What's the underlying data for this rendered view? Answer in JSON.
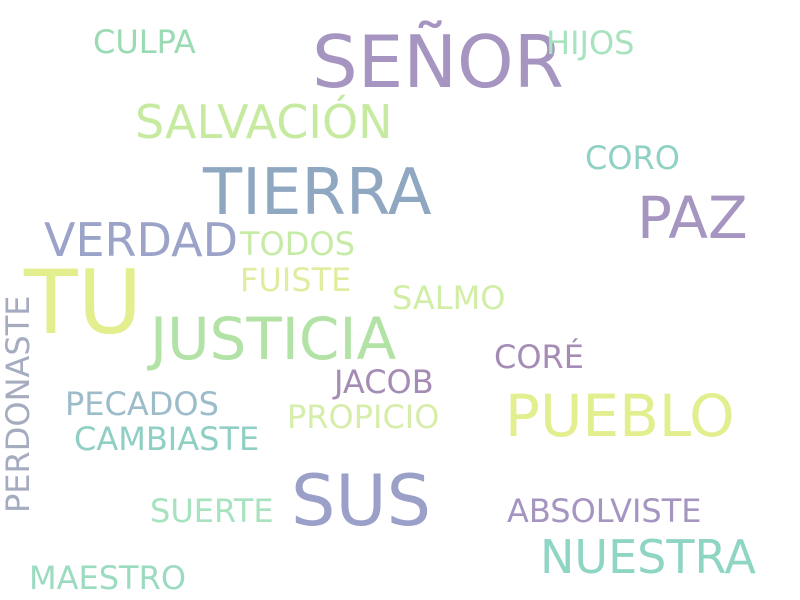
{
  "words": [
    {
      "text": "SEÑOR",
      "color": "#a595c0"
    },
    {
      "text": "TIERRA",
      "color": "#8fa7c0"
    },
    {
      "text": "TU",
      "color": "#e3ee8f"
    },
    {
      "text": "JUSTICIA",
      "color": "#b2e2a6"
    },
    {
      "text": "PUEBLO",
      "color": "#e3ee8f"
    },
    {
      "text": "SUS",
      "color": "#9ba0c8"
    },
    {
      "text": "PAZ",
      "color": "#a595c0"
    },
    {
      "text": "SALVACIÓN",
      "color": "#c6eba0"
    },
    {
      "text": "VERDAD",
      "color": "#9ba3c8"
    },
    {
      "text": "NUESTRA",
      "color": "#8fd5c4"
    },
    {
      "text": "CULPA",
      "color": "#9bdbb4"
    },
    {
      "text": "HIJOS",
      "color": "#a8e3c0"
    },
    {
      "text": "CORO",
      "color": "#8fd1c4"
    },
    {
      "text": "TODOS",
      "color": "#c6eba6"
    },
    {
      "text": "FUISTE",
      "color": "#e0eda0"
    },
    {
      "text": "SALMO",
      "color": "#d2eea6"
    },
    {
      "text": "CORÉ",
      "color": "#a58cb4"
    },
    {
      "text": "JACOB",
      "color": "#a58cb4"
    },
    {
      "text": "PECADOS",
      "color": "#9bbcc8"
    },
    {
      "text": "PROPICIO",
      "color": "#d6eeaa"
    },
    {
      "text": "CAMBIASTE",
      "color": "#8fcfc4"
    },
    {
      "text": "SUERTE",
      "color": "#a8e3c0"
    },
    {
      "text": "ABSOLVISTE",
      "color": "#a595c0"
    },
    {
      "text": "MAESTRO",
      "color": "#9bdbc0"
    },
    {
      "text": "PERDONASTE",
      "color": "#a5acc0"
    }
  ]
}
